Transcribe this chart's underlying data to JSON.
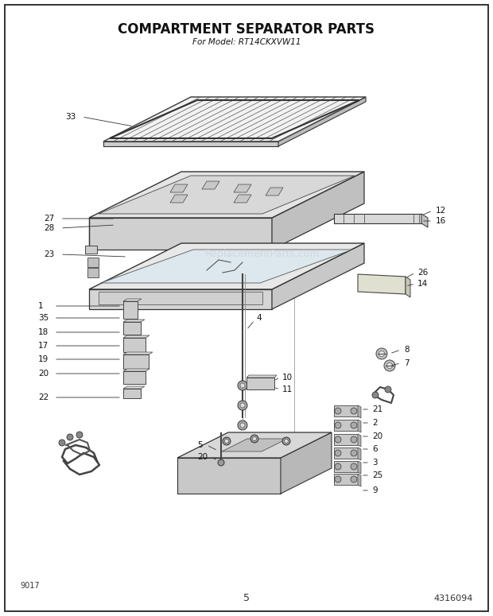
{
  "title": "COMPARTMENT SEPARATOR PARTS",
  "subtitle": "For Model: RT14CKXVW11",
  "page_number": "5",
  "doc_number": "4316094",
  "diagram_number": "9017",
  "background_color": "#ffffff",
  "border_color": "#000000",
  "text_color": "#1a1a1a",
  "title_fontsize": 12,
  "subtitle_fontsize": 7.5,
  "fig_width": 6.2,
  "fig_height": 7.75,
  "watermark_text": "ReplacementParts.com"
}
